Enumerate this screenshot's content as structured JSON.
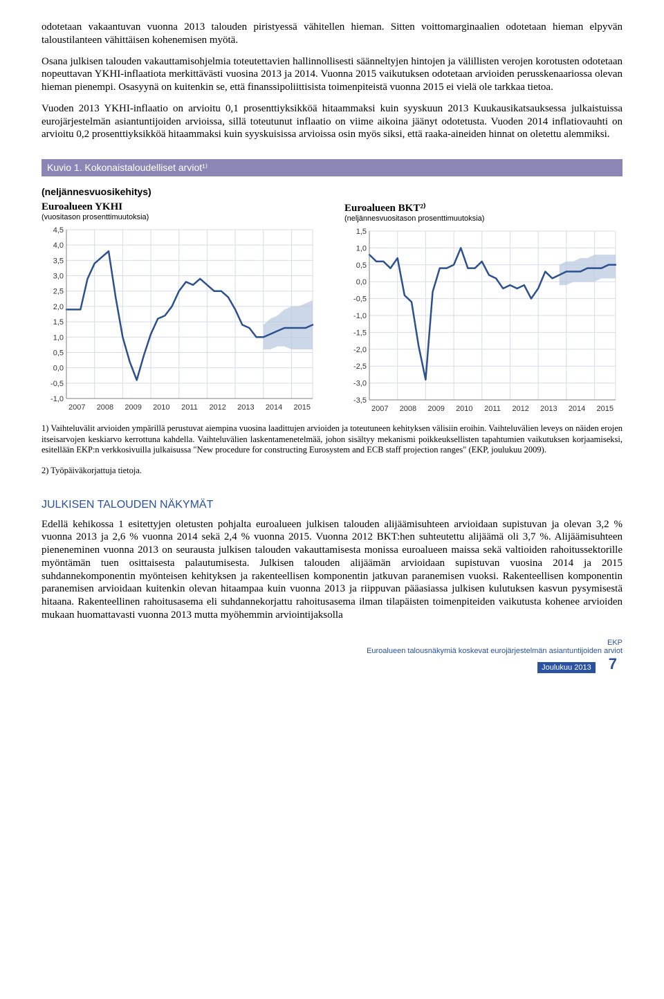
{
  "para1": "odotetaan vakaantuvan vuonna 2013 talouden piristyessä vähitellen hieman. Sitten voittomarginaalien odotetaan hieman elpyvän taloustilanteen vähittäisen kohenemisen myötä.",
  "para2": "Osana julkisen talouden vakauttamisohjelmia toteutettavien hallinnollisesti säänneltyjen hintojen ja välillisten verojen korotusten odotetaan nopeuttavan YKHI-inflaatiota merkittävästi vuosina 2013 ja 2014. Vuonna 2015 vaikutuksen odotetaan arvioiden perusskenaariossa olevan hieman pienempi. Osasyynä on kuitenkin se, että finanssipoliittisista toimenpiteistä vuonna 2015 ei vielä ole tarkkaa tietoa.",
  "para3": "Vuoden 2013 YKHI-inflaatio on arvioitu 0,1 prosenttiyksikköä hitaammaksi kuin syyskuun 2013 Kuukausikatsauksessa julkaistuissa eurojärjestelmän asiantuntijoiden arvioissa, sillä toteutunut inflaatio on viime aikoina jäänyt odotetusta. Vuoden 2014 inflatiovauhti on arvioitu 0,2 prosenttiyksikköä hitaammaksi kuin syyskuisissa arvioissa osin myös siksi, että raaka-aineiden hinnat on oletettu alemmiksi.",
  "figure_caption": "Kuvio 1. Kokonaistaloudelliset arviot¹⁾",
  "subhead": "(neljännesvuosikehitys)",
  "chart1": {
    "title": "Euroalueen YKHI",
    "subtitle": "(vuositason prosenttimuutoksia)",
    "y_min": -1.0,
    "y_max": 4.5,
    "y_step": 0.5,
    "x_labels": [
      "2007",
      "2008",
      "2009",
      "2010",
      "2011",
      "2012",
      "2013",
      "2014",
      "2015"
    ],
    "line_color": "#2c4f8f",
    "band_color": "#b6c7de",
    "grid_color": "#d7dbe5",
    "axis_color": "#808080",
    "tick_font": 11,
    "data": [
      [
        0,
        1.9
      ],
      [
        1,
        1.9
      ],
      [
        2,
        1.9
      ],
      [
        3,
        2.9
      ],
      [
        4,
        3.4
      ],
      [
        5,
        3.6
      ],
      [
        6,
        3.8
      ],
      [
        7,
        2.3
      ],
      [
        8,
        1.0
      ],
      [
        9,
        0.2
      ],
      [
        10,
        -0.4
      ],
      [
        11,
        0.4
      ],
      [
        12,
        1.1
      ],
      [
        13,
        1.6
      ],
      [
        14,
        1.7
      ],
      [
        15,
        2.0
      ],
      [
        16,
        2.5
      ],
      [
        17,
        2.8
      ],
      [
        18,
        2.7
      ],
      [
        19,
        2.9
      ],
      [
        20,
        2.7
      ],
      [
        21,
        2.5
      ],
      [
        22,
        2.5
      ],
      [
        23,
        2.3
      ],
      [
        24,
        1.9
      ],
      [
        25,
        1.4
      ],
      [
        26,
        1.3
      ],
      [
        27,
        1.0
      ],
      [
        28,
        1.0
      ],
      [
        29,
        1.1
      ],
      [
        30,
        1.2
      ],
      [
        31,
        1.3
      ],
      [
        32,
        1.3
      ],
      [
        33,
        1.3
      ],
      [
        34,
        1.3
      ],
      [
        35,
        1.4
      ]
    ],
    "band_start_q": 28,
    "band": [
      [
        28,
        0.6,
        1.4
      ],
      [
        29,
        0.6,
        1.6
      ],
      [
        30,
        0.7,
        1.7
      ],
      [
        31,
        0.7,
        1.9
      ],
      [
        32,
        0.6,
        2.0
      ],
      [
        33,
        0.6,
        2.0
      ],
      [
        34,
        0.6,
        2.1
      ],
      [
        35,
        0.6,
        2.2
      ]
    ]
  },
  "chart2": {
    "title": "Euroalueen BKT²⁾",
    "subtitle": "(neljännesvuositason prosenttimuutoksia)",
    "y_min": -3.5,
    "y_max": 1.5,
    "y_step": 0.5,
    "x_labels": [
      "2007",
      "2008",
      "2009",
      "2010",
      "2011",
      "2012",
      "2013",
      "2014",
      "2015"
    ],
    "line_color": "#2c4f8f",
    "band_color": "#b6c7de",
    "grid_color": "#d7dbe5",
    "axis_color": "#808080",
    "tick_font": 11,
    "data": [
      [
        0,
        0.8
      ],
      [
        1,
        0.6
      ],
      [
        2,
        0.6
      ],
      [
        3,
        0.4
      ],
      [
        4,
        0.7
      ],
      [
        5,
        -0.4
      ],
      [
        6,
        -0.6
      ],
      [
        7,
        -1.9
      ],
      [
        8,
        -2.9
      ],
      [
        9,
        -0.3
      ],
      [
        10,
        0.4
      ],
      [
        11,
        0.4
      ],
      [
        12,
        0.5
      ],
      [
        13,
        1.0
      ],
      [
        14,
        0.4
      ],
      [
        15,
        0.4
      ],
      [
        16,
        0.6
      ],
      [
        17,
        0.2
      ],
      [
        18,
        0.1
      ],
      [
        19,
        -0.2
      ],
      [
        20,
        -0.1
      ],
      [
        21,
        -0.2
      ],
      [
        22,
        -0.1
      ],
      [
        23,
        -0.5
      ],
      [
        24,
        -0.2
      ],
      [
        25,
        0.3
      ],
      [
        26,
        0.1
      ],
      [
        27,
        0.2
      ],
      [
        28,
        0.3
      ],
      [
        29,
        0.3
      ],
      [
        30,
        0.3
      ],
      [
        31,
        0.4
      ],
      [
        32,
        0.4
      ],
      [
        33,
        0.4
      ],
      [
        34,
        0.5
      ],
      [
        35,
        0.5
      ]
    ],
    "band_start_q": 27,
    "band": [
      [
        27,
        -0.1,
        0.5
      ],
      [
        28,
        -0.1,
        0.6
      ],
      [
        29,
        0.0,
        0.6
      ],
      [
        30,
        0.0,
        0.7
      ],
      [
        31,
        0.0,
        0.7
      ],
      [
        32,
        0.0,
        0.8
      ],
      [
        33,
        0.1,
        0.8
      ],
      [
        34,
        0.1,
        0.8
      ],
      [
        35,
        0.1,
        0.8
      ]
    ]
  },
  "notes1": "1) Vaihteluvälit arvioiden ympärillä perustuvat aiempina vuosina laadittujen arvioiden ja toteutuneen kehityksen välisiin eroihin. Vaihteluvälien leveys on näiden erojen itseisarvojen keskiarvo kerrottuna kahdella. Vaihteluvälien laskentamenetelmää, johon sisältyy mekanismi poikkeuksellisten tapahtumien vaikutuksen korjaamiseksi, esitellään EKP:n verkkosivuilla julkaisussa \"New procedure for constructing Eurosystem and ECB staff projection ranges\" (EKP, joulukuu 2009).",
  "notes2": "2) Työpäiväkorjattuja tietoja.",
  "section": "JULKISEN TALOUDEN NÄKYMÄT",
  "para4": "Edellä kehikossa 1 esitettyjen oletusten pohjalta euroalueen julkisen talouden alijäämisuhteen arvioidaan supistuvan ja olevan 3,2 % vuonna 2013 ja 2,6 % vuonna 2014 sekä 2,4 % vuonna 2015. Vuonna 2012 BKT:hen suhteutettu alijäämä oli 3,7 %. Alijäämisuhteen pieneneminen vuonna 2013 on seurausta julkisen talouden vakauttamisesta monissa euroalueen maissa sekä valtioiden rahoitussektorille myöntämän tuen osittaisesta palautumisesta. Julkisen talouden alijäämän arvioidaan supistuvan vuosina 2014 ja 2015 suhdannekomponentin myönteisen kehityksen ja rakenteellisen komponentin jatkuvan paranemisen vuoksi. Rakenteellisen komponentin paranemisen arvioidaan kuitenkin olevan hitaampaa kuin vuonna 2013 ja riippuvan pääasiassa julkisen kulutuksen kasvun pysymisestä hitaana. Rakenteellinen rahoitusasema eli suhdannekorjattu rahoitusasema ilman tilapäisten toimenpiteiden vaikutusta kohenee arvioiden mukaan huomattavasti vuonna 2013 mutta myöhemmin arviointijaksolla",
  "footer_line1": "EKP",
  "footer_line2": "Euroalueen talousnäkymiä koskevat eurojärjestelmän asiantuntijoiden arviot",
  "footer_line3": "Joulukuu 2013",
  "pagenum": "7"
}
